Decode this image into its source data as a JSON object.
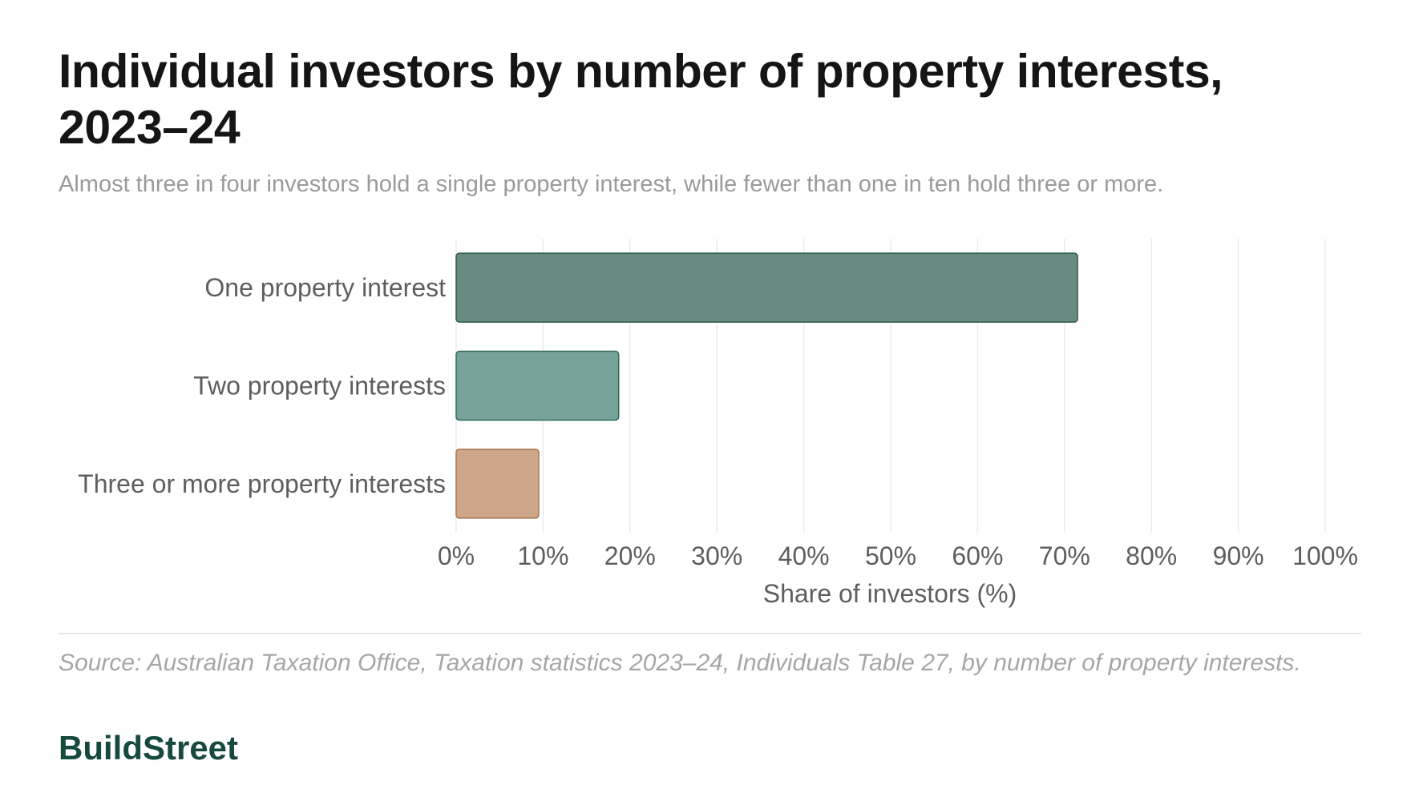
{
  "header": {
    "title": "Individual investors by number of property interests, 2023–24",
    "subtitle": "Almost three in four investors hold a single property interest, while fewer than one in ten hold three or more."
  },
  "footer": {
    "source": "Source: Australian Taxation Office, Taxation statistics 2023–24, Individuals Table 27, by number of property interests.",
    "brand": "BuildStreet"
  },
  "chart_data": {
    "type": "bar",
    "orientation": "horizontal",
    "title": "Individual investors by number of property interests, 2023–24",
    "subtitle": "Almost three in four investors hold a single property interest, while fewer than one in ten hold three or more.",
    "categories": [
      "One property interest",
      "Two property interests",
      "Three or more property interests"
    ],
    "values": [
      71.5,
      18.7,
      9.5
    ],
    "colors": [
      "#678b80",
      "#77a29a",
      "#cda588"
    ],
    "border_colors": [
      "#2f5b4e",
      "#2f6a5e",
      "#a87552"
    ],
    "xlabel": "Share of investors (%)",
    "ylabel": "",
    "xlim": [
      0,
      100
    ],
    "xticks": [
      0,
      10,
      20,
      30,
      40,
      50,
      60,
      70,
      80,
      90,
      100
    ],
    "xtick_labels": [
      "0%",
      "10%",
      "20%",
      "30%",
      "40%",
      "50%",
      "60%",
      "70%",
      "80%",
      "90%",
      "100%"
    ],
    "grid": true,
    "legend": "none"
  }
}
